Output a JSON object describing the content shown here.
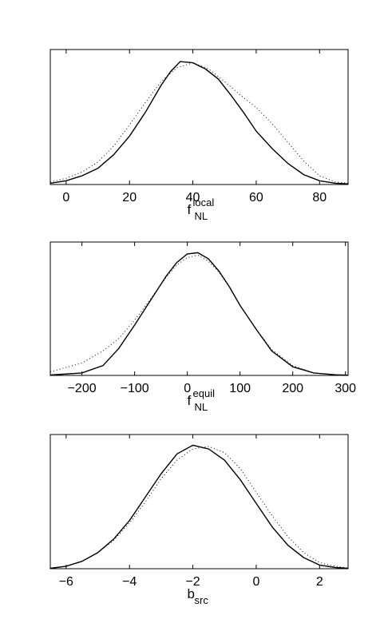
{
  "chart_data": [
    {
      "type": "line",
      "xlabel": {
        "main": "f",
        "sup": "local",
        "sub": "NL"
      },
      "ylabel": "",
      "xlim": [
        -5,
        89
      ],
      "ylim": [
        0,
        1.0
      ],
      "grid": false,
      "xticks": [
        0,
        20,
        40,
        60,
        80
      ],
      "tick_labels": [
        "0",
        "20",
        "40",
        "60",
        "80"
      ],
      "series": [
        {
          "style": "solid",
          "x": [
            -5,
            0,
            5,
            10,
            15,
            20,
            25,
            30,
            33,
            36,
            40,
            44,
            48,
            52,
            56,
            60,
            65,
            70,
            75,
            80,
            85,
            89
          ],
          "values": [
            0.01,
            0.03,
            0.07,
            0.13,
            0.24,
            0.39,
            0.58,
            0.8,
            0.91,
            0.99,
            0.98,
            0.93,
            0.85,
            0.72,
            0.58,
            0.43,
            0.29,
            0.17,
            0.08,
            0.03,
            0.01,
            0.005
          ]
        },
        {
          "style": "dotted",
          "x": [
            -5,
            0,
            5,
            10,
            15,
            20,
            25,
            30,
            35,
            40,
            45,
            50,
            55,
            60,
            65,
            70,
            75,
            80,
            85,
            89
          ],
          "values": [
            0.02,
            0.05,
            0.1,
            0.18,
            0.31,
            0.48,
            0.66,
            0.83,
            0.94,
            0.98,
            0.93,
            0.83,
            0.72,
            0.62,
            0.49,
            0.34,
            0.19,
            0.07,
            0.02,
            0.01
          ]
        }
      ]
    },
    {
      "type": "line",
      "xlabel": {
        "main": "f",
        "sup": "equil",
        "sub": "NL"
      },
      "ylabel": "",
      "xlim": [
        -260,
        305
      ],
      "ylim": [
        0,
        1.0
      ],
      "grid": false,
      "xticks": [
        -200,
        -100,
        0,
        100,
        200,
        300
      ],
      "tick_labels": [
        "−200",
        "−100",
        "0",
        "100",
        "200",
        "300"
      ],
      "series": [
        {
          "style": "solid",
          "x": [
            -260,
            -200,
            -160,
            -130,
            -100,
            -70,
            -40,
            -20,
            0,
            20,
            40,
            60,
            80,
            100,
            130,
            160,
            200,
            240,
            280,
            305
          ],
          "values": [
            0.003,
            0.02,
            0.08,
            0.22,
            0.41,
            0.61,
            0.81,
            0.92,
            0.99,
            1.0,
            0.95,
            0.85,
            0.72,
            0.57,
            0.38,
            0.2,
            0.07,
            0.02,
            0.005,
            0.002
          ]
        },
        {
          "style": "dotted",
          "x": [
            -260,
            -200,
            -160,
            -130,
            -100,
            -70,
            -40,
            -20,
            0,
            20,
            40,
            60,
            80,
            100,
            130,
            160,
            200,
            240,
            280,
            305
          ],
          "values": [
            0.03,
            0.1,
            0.2,
            0.3,
            0.45,
            0.62,
            0.8,
            0.9,
            0.96,
            0.98,
            0.93,
            0.84,
            0.72,
            0.57,
            0.38,
            0.21,
            0.08,
            0.02,
            0.005,
            0.002
          ]
        }
      ]
    },
    {
      "type": "line",
      "xlabel": {
        "main": "b",
        "sup": "",
        "sub": "src"
      },
      "ylabel": "",
      "xlim": [
        -6.5,
        2.9
      ],
      "ylim": [
        0,
        1.0
      ],
      "grid": false,
      "xticks": [
        -6,
        -4,
        -2,
        0,
        2
      ],
      "tick_labels": [
        "−6",
        "−4",
        "−2",
        "0",
        "2"
      ],
      "series": [
        {
          "style": "solid",
          "x": [
            -6.5,
            -6.0,
            -5.5,
            -5.0,
            -4.5,
            -4.0,
            -3.5,
            -3.0,
            -2.5,
            -2.0,
            -1.5,
            -1.0,
            -0.5,
            0.0,
            0.5,
            1.0,
            1.5,
            2.0,
            2.5,
            2.9
          ],
          "values": [
            0.003,
            0.02,
            0.06,
            0.13,
            0.24,
            0.39,
            0.58,
            0.77,
            0.93,
            1.0,
            0.97,
            0.88,
            0.72,
            0.53,
            0.34,
            0.19,
            0.09,
            0.03,
            0.01,
            0.003
          ]
        },
        {
          "style": "dotted",
          "x": [
            -6.5,
            -6.0,
            -5.5,
            -5.0,
            -4.5,
            -4.0,
            -3.5,
            -3.0,
            -2.5,
            -2.0,
            -1.5,
            -1.0,
            -0.5,
            0.0,
            0.5,
            1.0,
            1.5,
            2.0,
            2.5,
            2.9
          ],
          "values": [
            0.004,
            0.02,
            0.06,
            0.13,
            0.23,
            0.37,
            0.54,
            0.73,
            0.88,
            0.97,
            0.99,
            0.94,
            0.81,
            0.62,
            0.43,
            0.26,
            0.13,
            0.05,
            0.02,
            0.005
          ]
        }
      ]
    }
  ]
}
